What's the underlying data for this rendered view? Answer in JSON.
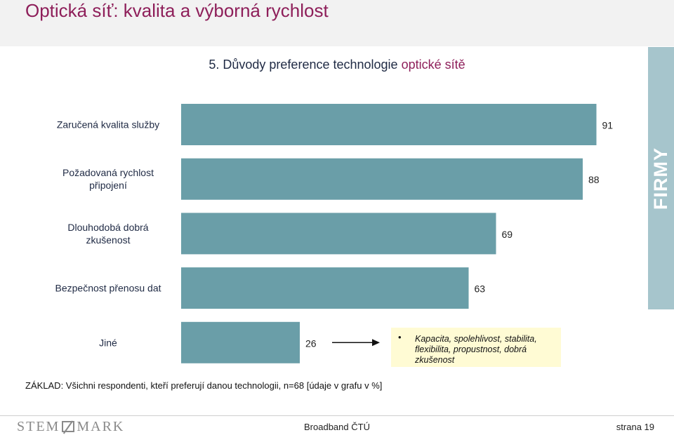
{
  "slide_title": "Optická síť: kvalita a výborná rychlost",
  "chart_title_prefix": "5. Důvody preference technologie ",
  "chart_title_accent": "optické sítě",
  "side_label": "FIRMY",
  "colors": {
    "bar": "#6a9ea8",
    "accent": "#8e1f5a",
    "panel": "#a6c5cc",
    "note_bg": "#fffbd4"
  },
  "chart_data": {
    "type": "bar",
    "orientation": "horizontal",
    "categories": [
      [
        "Zaručená  kvalita služby"
      ],
      [
        "Požadovaná rychlost",
        "připojení"
      ],
      [
        "Dlouhodobá dobrá",
        "zkušenost"
      ],
      [
        "Bezpečnost přenosu dat"
      ],
      [
        "Jiné"
      ]
    ],
    "values": [
      91,
      88,
      69,
      63,
      26
    ],
    "data_labels": [
      "91",
      "88",
      "69",
      "63",
      "26"
    ],
    "unit": "%",
    "grid": false,
    "legend": "none"
  },
  "annotation": {
    "arrow_icon": "right-arrow-icon",
    "bullet": "•",
    "text": "Kapacita, spolehlivost, stabilita, flexibilita, propustnost, dobrá zkušenost"
  },
  "base_note": "ZÁKLAD: Všichni respondenti, kteří preferují danou technologii, n=68 [údaje v grafu v %]",
  "footer": {
    "logo_left": "STEM",
    "logo_right": "MARK",
    "center": "Broadband ČTÚ",
    "page": "strana 19"
  }
}
